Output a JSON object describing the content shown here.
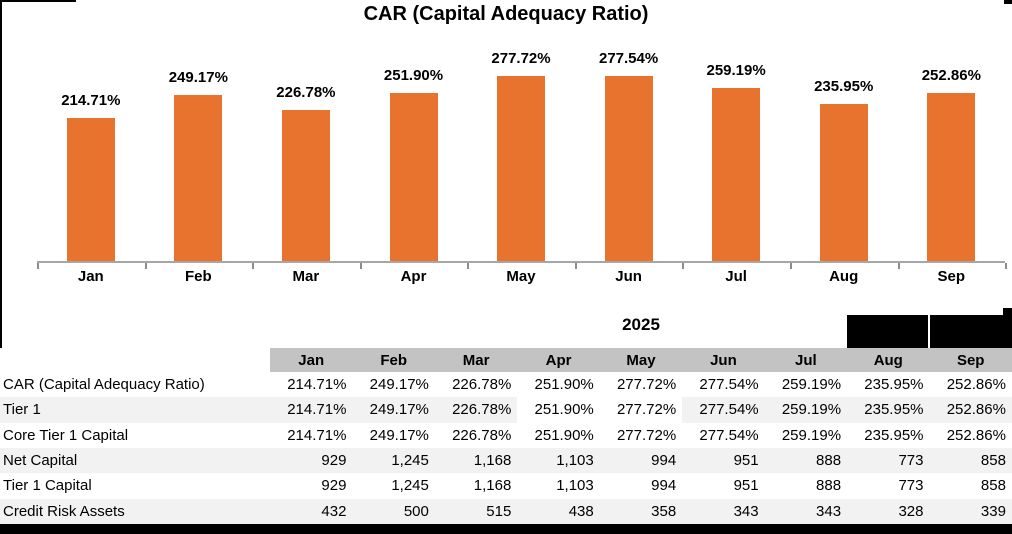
{
  "chart_data": {
    "type": "bar",
    "title": "CAR (Capital Adequacy Ratio)",
    "categories": [
      "Jan",
      "Feb",
      "Mar",
      "Apr",
      "May",
      "Jun",
      "Jul",
      "Aug",
      "Sep"
    ],
    "values": [
      214.71,
      249.17,
      226.78,
      251.9,
      277.72,
      277.54,
      259.19,
      235.95,
      252.86
    ],
    "value_labels": [
      "214.71%",
      "249.17%",
      "226.78%",
      "251.90%",
      "277.72%",
      "277.54%",
      "259.19%",
      "235.95%",
      "252.86%"
    ],
    "xlabel": "",
    "ylabel": "",
    "ylim": [
      0,
      300
    ],
    "legend": "none",
    "grid": "off",
    "bar_color": "#E8732F",
    "axis_color": "#A6A6A6"
  },
  "table": {
    "year_label": "2025",
    "columns": [
      "Jan",
      "Feb",
      "Mar",
      "Apr",
      "May",
      "Jun",
      "Jul",
      "Aug",
      "Sep"
    ],
    "redacted_band_columns": [
      "Aug",
      "Sep"
    ],
    "rows": [
      {
        "label": "CAR (Capital Adequacy Ratio)",
        "striped": false,
        "values": [
          "214.71%",
          "249.17%",
          "226.78%",
          "251.90%",
          "277.72%",
          "277.54%",
          "259.19%",
          "235.95%",
          "252.86%"
        ]
      },
      {
        "label": "Tier 1",
        "striped": true,
        "white_cells": [
          3,
          4
        ],
        "values": [
          "214.71%",
          "249.17%",
          "226.78%",
          "251.90%",
          "277.72%",
          "277.54%",
          "259.19%",
          "235.95%",
          "252.86%"
        ]
      },
      {
        "label": "Core Tier 1 Capital",
        "striped": false,
        "values": [
          "214.71%",
          "249.17%",
          "226.78%",
          "251.90%",
          "277.72%",
          "277.54%",
          "259.19%",
          "235.95%",
          "252.86%"
        ]
      },
      {
        "label": "Net Capital",
        "striped": true,
        "values": [
          "929",
          "1,245",
          "1,168",
          "1,103",
          "994",
          "951",
          "888",
          "773",
          "858"
        ]
      },
      {
        "label": "Tier 1 Capital",
        "striped": false,
        "values": [
          "929",
          "1,245",
          "1,168",
          "1,103",
          "994",
          "951",
          "888",
          "773",
          "858"
        ]
      },
      {
        "label": "Credit Risk Assets",
        "striped": true,
        "values": [
          "432",
          "500",
          "515",
          "438",
          "358",
          "343",
          "343",
          "328",
          "339"
        ]
      }
    ],
    "colors": {
      "header_bg": "#C3C3C3",
      "stripe_bg": "#F2F2F2",
      "redaction": "#000000"
    }
  }
}
